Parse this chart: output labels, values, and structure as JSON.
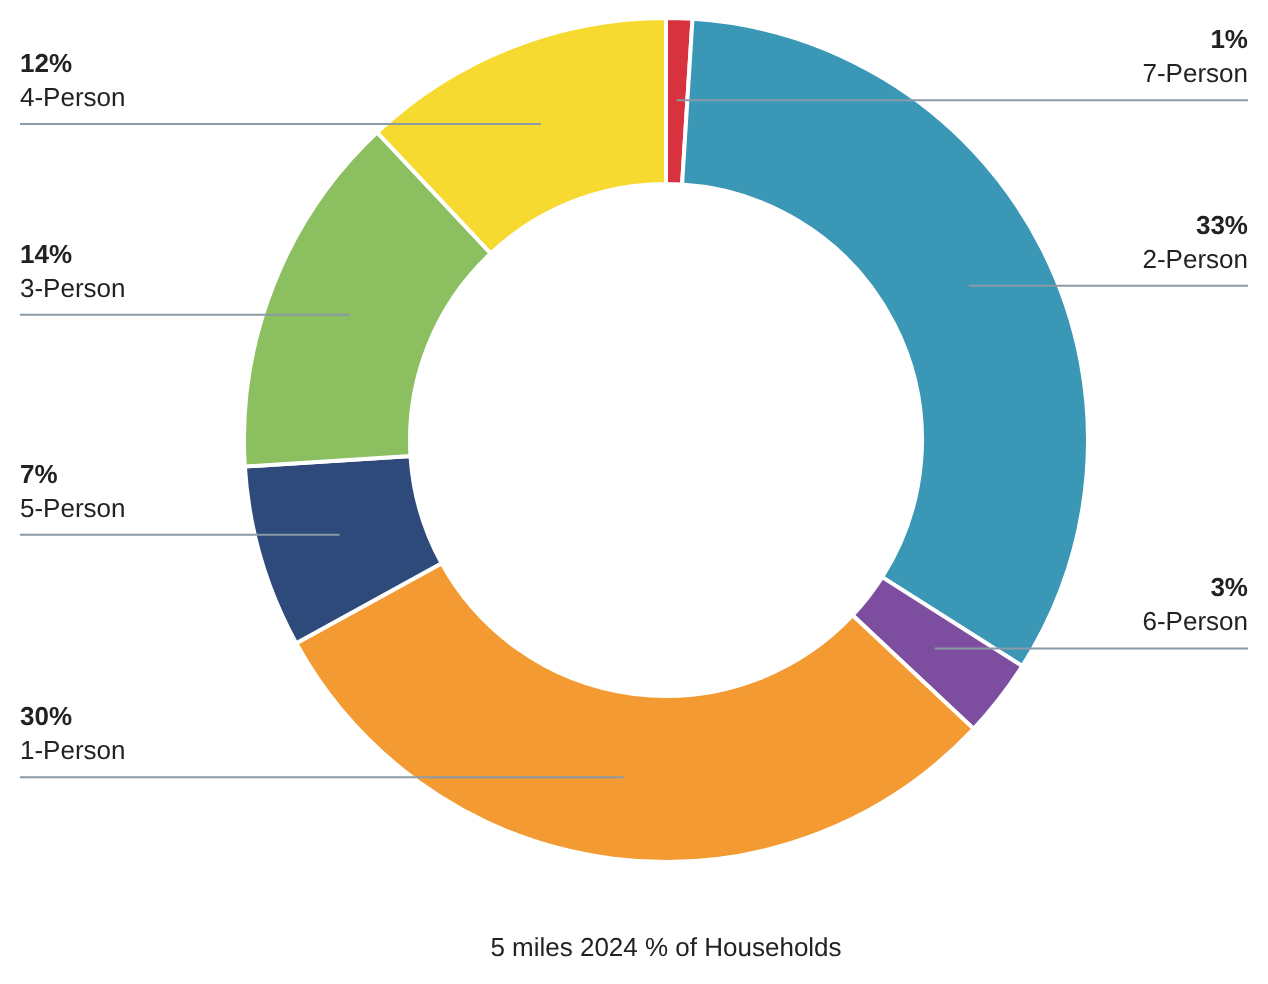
{
  "chart_data": {
    "type": "donut",
    "title": "5 miles 2024 % of Households",
    "categories": [
      "7-Person",
      "2-Person",
      "6-Person",
      "1-Person",
      "5-Person",
      "3-Person",
      "4-Person"
    ],
    "values": [
      1,
      33,
      3,
      30,
      7,
      14,
      12
    ],
    "value_labels": [
      "1%",
      "33%",
      "3%",
      "30%",
      "7%",
      "14%",
      "12%"
    ],
    "colors": [
      "#d9323f",
      "#3a97b6",
      "#7d4e9f",
      "#f39a32",
      "#2d4a7b",
      "#8bbf5f",
      "#f6da2f"
    ]
  }
}
